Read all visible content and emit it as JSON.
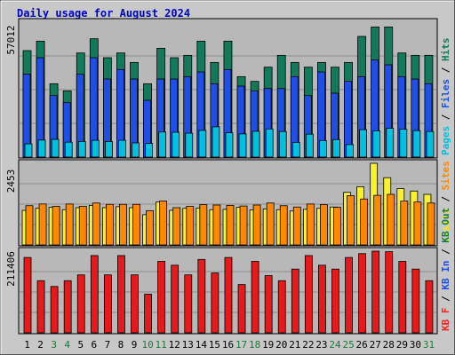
{
  "chart_data": {
    "type": "bar",
    "title": "Daily usage for August 2024",
    "categories": [
      "1",
      "2",
      "3",
      "4",
      "5",
      "6",
      "7",
      "8",
      "9",
      "10",
      "11",
      "12",
      "13",
      "14",
      "15",
      "16",
      "17",
      "18",
      "19",
      "20",
      "21",
      "22",
      "23",
      "24",
      "25",
      "26",
      "27",
      "28",
      "29",
      "30",
      "31"
    ],
    "weekend_days": [
      3,
      4,
      10,
      11,
      17,
      18,
      24,
      25,
      31
    ],
    "panels": [
      {
        "id": "hits",
        "max_label": "57012",
        "ylim": [
          0,
          57012
        ],
        "legend": [
          {
            "text": "Pages",
            "color": "#00c0e0"
          },
          {
            "text": "Files",
            "color": "#1e50e8"
          },
          {
            "text": "Hits",
            "color": "#127a5a"
          }
        ],
        "series": [
          {
            "name": "Hits",
            "color": "#127a5a",
            "values": [
              45000,
              49000,
              31000,
              28000,
              44000,
              50000,
              42000,
              44000,
              40000,
              31000,
              46000,
              42000,
              43000,
              49000,
              40000,
              49000,
              34000,
              32000,
              38000,
              43000,
              40000,
              38000,
              40000,
              38000,
              40000,
              51000,
              55000,
              55000,
              44000,
              43000,
              43000
            ]
          },
          {
            "name": "Files",
            "color": "#1e50e8",
            "values": [
              35000,
              42000,
              26000,
              23000,
              35000,
              42000,
              33000,
              37000,
              33000,
              24000,
              33000,
              33000,
              34000,
              36000,
              31000,
              37000,
              30000,
              28000,
              29000,
              29000,
              34000,
              26000,
              36000,
              27000,
              32000,
              34000,
              41000,
              39000,
              34000,
              33000,
              31000
            ]
          },
          {
            "name": "Pages",
            "color": "#00c0e0",
            "values": [
              5600,
              7200,
              7500,
              6300,
              6600,
              7100,
              6600,
              7100,
              6000,
              5800,
              10600,
              10500,
              10100,
              11300,
              12800,
              10300,
              9800,
              10900,
              11900,
              10800,
              6200,
              9700,
              7000,
              7400,
              5300,
              11600,
              11100,
              12200,
              11800,
              11200,
              10800
            ]
          }
        ]
      },
      {
        "id": "visits",
        "max_label": "2453",
        "ylim": [
          0,
          2453
        ],
        "legend": [
          {
            "text": "Visits",
            "color": "#f0e800"
          },
          {
            "text": "Sites",
            "color": "#ff8800"
          }
        ],
        "series": [
          {
            "name": "Visits",
            "color": "#f8f030",
            "values": [
              1040,
              1100,
              1130,
              1060,
              1120,
              1190,
              1120,
              1150,
              1120,
              910,
              1290,
              1040,
              1100,
              1110,
              1060,
              1070,
              1130,
              1050,
              1080,
              1060,
              1020,
              1070,
              1100,
              1140,
              1580,
              1750,
              2453,
              2020,
              1690,
              1620,
              1520
            ]
          },
          {
            "name": "Sites",
            "color": "#ff8800",
            "values": [
              1180,
              1230,
              1160,
              1230,
              1160,
              1260,
              1220,
              1220,
              1220,
              1030,
              1320,
              1120,
              1160,
              1210,
              1200,
              1190,
              1170,
              1200,
              1260,
              1180,
              1140,
              1230,
              1210,
              1130,
              1480,
              1380,
              1490,
              1520,
              1320,
              1290,
              1260
            ]
          }
        ]
      },
      {
        "id": "kbytes",
        "max_label": "211406",
        "ylim": [
          0,
          211406
        ],
        "legend": [
          {
            "text": "KB F",
            "color": "#ff2020"
          },
          {
            "text": "KB In",
            "color": "#1e50e8"
          },
          {
            "text": "KB Out",
            "color": "#127a5a"
          }
        ],
        "series": [
          {
            "name": "KB F",
            "color": "#e61a1a",
            "values": [
              195000,
              135000,
              120000,
              135000,
              150000,
              200000,
              150000,
              200000,
              150000,
              100000,
              185000,
              175000,
              150000,
              190000,
              155000,
              195000,
              125000,
              185000,
              148000,
              135000,
              165000,
              200000,
              175000,
              165000,
              195000,
              205000,
              211406,
              210000,
              185000,
              165000,
              135000
            ]
          }
        ]
      }
    ]
  }
}
